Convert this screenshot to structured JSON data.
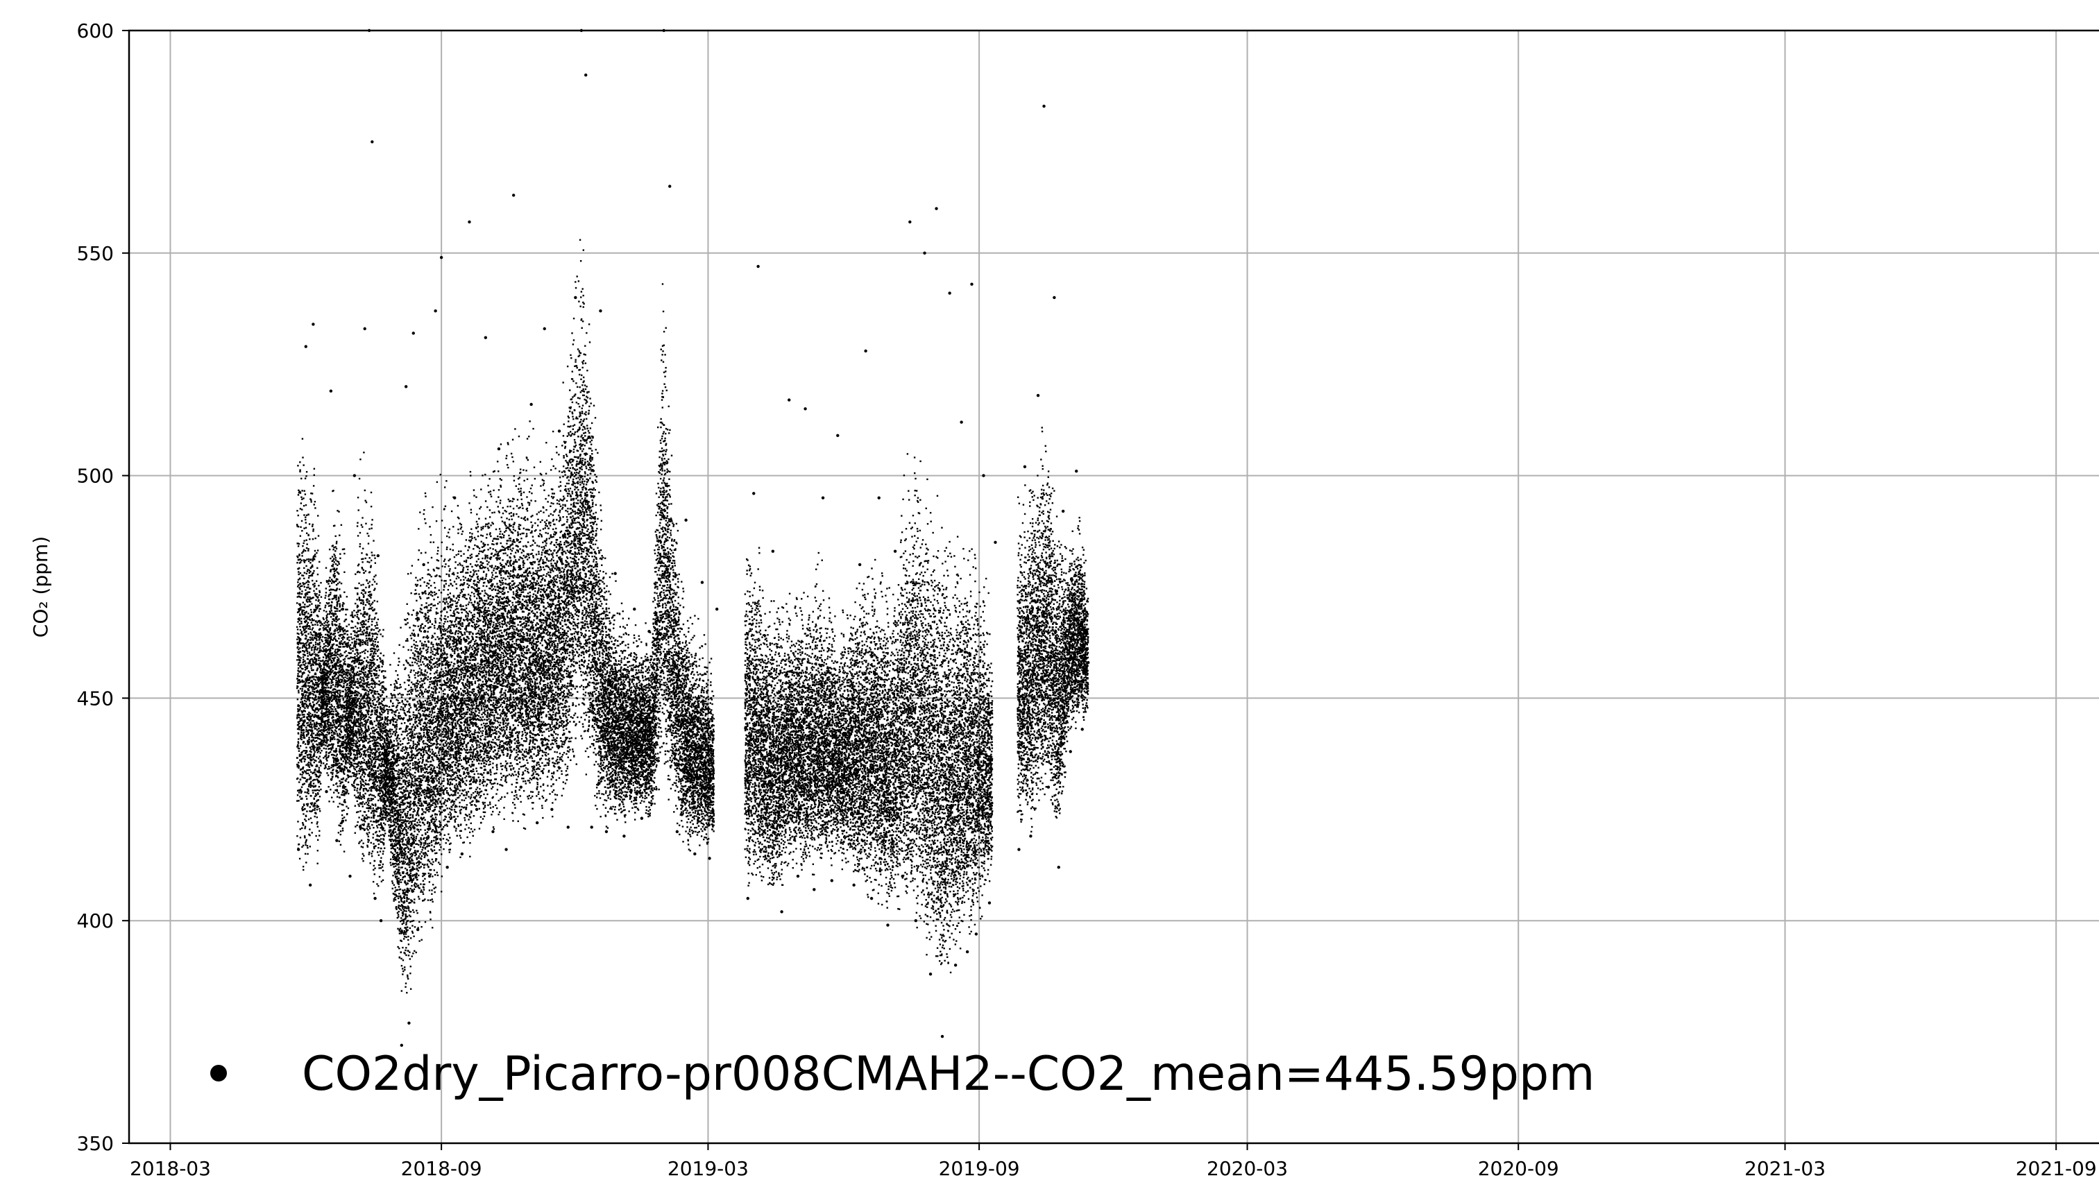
{
  "chart_data": {
    "type": "scatter",
    "title": "",
    "xlabel": "",
    "ylabel": "CO₂ (ppm)",
    "xlim": [
      "2018-02-01",
      "2021-10-10"
    ],
    "ylim": [
      350,
      600
    ],
    "xticks": [
      "2018-03",
      "2018-09",
      "2019-03",
      "2019-09",
      "2020-03",
      "2020-09",
      "2021-03",
      "2021-09"
    ],
    "yticks": [
      350,
      400,
      450,
      500,
      550,
      600
    ],
    "grid": true,
    "legend_position": "lower-left",
    "marker_color": "#000000",
    "series": [
      {
        "name": "CO2dry_Picarro-pr008CMAH2--CO2_mean=445.59ppm",
        "marker": "point",
        "x_range": [
          "2018-05-25",
          "2019-11-15"
        ],
        "mean": 445.59,
        "points": [
          [
            "2018-05-27",
            416
          ],
          [
            "2018-05-28",
            470
          ],
          [
            "2018-06-01",
            529
          ],
          [
            "2018-06-04",
            408
          ],
          [
            "2018-06-06",
            534
          ],
          [
            "2018-06-10",
            450
          ],
          [
            "2018-06-15",
            429
          ],
          [
            "2018-06-18",
            519
          ],
          [
            "2018-06-22",
            418
          ],
          [
            "2018-06-26",
            470
          ],
          [
            "2018-07-01",
            410
          ],
          [
            "2018-07-04",
            500
          ],
          [
            "2018-07-08",
            421
          ],
          [
            "2018-07-11",
            533
          ],
          [
            "2018-07-14",
            600
          ],
          [
            "2018-07-16",
            575
          ],
          [
            "2018-07-18",
            405
          ],
          [
            "2018-07-20",
            482
          ],
          [
            "2018-07-22",
            400
          ],
          [
            "2018-07-25",
            452
          ],
          [
            "2018-08-02",
            436
          ],
          [
            "2018-08-05",
            372
          ],
          [
            "2018-08-08",
            520
          ],
          [
            "2018-08-10",
            377
          ],
          [
            "2018-08-13",
            532
          ],
          [
            "2018-08-16",
            398
          ],
          [
            "2018-08-20",
            480
          ],
          [
            "2018-08-24",
            410
          ],
          [
            "2018-08-28",
            537
          ],
          [
            "2018-09-01",
            549
          ],
          [
            "2018-09-05",
            412
          ],
          [
            "2018-09-10",
            495
          ],
          [
            "2018-09-15",
            415
          ],
          [
            "2018-09-20",
            557
          ],
          [
            "2018-09-25",
            425
          ],
          [
            "2018-10-01",
            531
          ],
          [
            "2018-10-06",
            420
          ],
          [
            "2018-10-10",
            506
          ],
          [
            "2018-10-15",
            416
          ],
          [
            "2018-10-20",
            563
          ],
          [
            "2018-10-25",
            430
          ],
          [
            "2018-11-01",
            516
          ],
          [
            "2018-11-05",
            422
          ],
          [
            "2018-11-10",
            533
          ],
          [
            "2018-11-15",
            425
          ],
          [
            "2018-11-20",
            510
          ],
          [
            "2018-11-26",
            421
          ],
          [
            "2018-12-01",
            540
          ],
          [
            "2018-12-05",
            600
          ],
          [
            "2018-12-08",
            590
          ],
          [
            "2018-12-12",
            421
          ],
          [
            "2018-12-18",
            537
          ],
          [
            "2018-12-22",
            420
          ],
          [
            "2018-12-28",
            478
          ],
          [
            "2019-01-03",
            419
          ],
          [
            "2019-01-10",
            470
          ],
          [
            "2019-01-15",
            423
          ],
          [
            "2019-01-20",
            465
          ],
          [
            "2019-01-25",
            440
          ],
          [
            "2019-01-30",
            600
          ],
          [
            "2019-02-03",
            565
          ],
          [
            "2019-02-08",
            420
          ],
          [
            "2019-02-14",
            490
          ],
          [
            "2019-02-20",
            415
          ],
          [
            "2019-02-25",
            476
          ],
          [
            "2019-03-02",
            414
          ],
          [
            "2019-03-07",
            470
          ],
          [
            "2019-03-28",
            405
          ],
          [
            "2019-04-01",
            496
          ],
          [
            "2019-04-04",
            547
          ],
          [
            "2019-04-08",
            420
          ],
          [
            "2019-04-14",
            483
          ],
          [
            "2019-04-20",
            402
          ],
          [
            "2019-04-25",
            517
          ],
          [
            "2019-05-01",
            410
          ],
          [
            "2019-05-06",
            515
          ],
          [
            "2019-05-12",
            407
          ],
          [
            "2019-05-18",
            495
          ],
          [
            "2019-05-24",
            409
          ],
          [
            "2019-05-28",
            509
          ],
          [
            "2019-06-08",
            408
          ],
          [
            "2019-06-12",
            480
          ],
          [
            "2019-06-16",
            528
          ],
          [
            "2019-06-20",
            405
          ],
          [
            "2019-06-25",
            495
          ],
          [
            "2019-07-01",
            399
          ],
          [
            "2019-07-06",
            483
          ],
          [
            "2019-07-11",
            410
          ],
          [
            "2019-07-16",
            557
          ],
          [
            "2019-07-20",
            400
          ],
          [
            "2019-07-26",
            550
          ],
          [
            "2019-07-30",
            388
          ],
          [
            "2019-08-03",
            560
          ],
          [
            "2019-08-07",
            374
          ],
          [
            "2019-08-12",
            541
          ],
          [
            "2019-08-16",
            390
          ],
          [
            "2019-08-20",
            512
          ],
          [
            "2019-08-24",
            393
          ],
          [
            "2019-08-27",
            543
          ],
          [
            "2019-08-30",
            397
          ],
          [
            "2019-09-04",
            500
          ],
          [
            "2019-09-08",
            404
          ],
          [
            "2019-09-12",
            485
          ],
          [
            "2019-09-28",
            416
          ],
          [
            "2019-10-02",
            502
          ],
          [
            "2019-10-06",
            419
          ],
          [
            "2019-10-11",
            518
          ],
          [
            "2019-10-15",
            583
          ],
          [
            "2019-10-18",
            430
          ],
          [
            "2019-10-22",
            540
          ],
          [
            "2019-10-25",
            412
          ],
          [
            "2019-10-28",
            492
          ],
          [
            "2019-11-02",
            438
          ],
          [
            "2019-11-06",
            501
          ],
          [
            "2019-11-10",
            443
          ],
          [
            "2019-11-14",
            458
          ]
        ]
      }
    ],
    "density_profile": [
      [
        "2018-05-26",
        408,
        520
      ],
      [
        "2018-06-03",
        407,
        515
      ],
      [
        "2018-06-10",
        410,
        505
      ],
      [
        "2018-06-12",
        435,
        470
      ],
      [
        "2018-06-20",
        418,
        510
      ],
      [
        "2018-06-27",
        412,
        490
      ],
      [
        "2018-07-01",
        430,
        470
      ],
      [
        "2018-07-07",
        410,
        505
      ],
      [
        "2018-07-14",
        405,
        510
      ],
      [
        "2018-07-22",
        402,
        480
      ],
      [
        "2018-07-26",
        420,
        455
      ],
      [
        "2018-08-01",
        395,
        470
      ],
      [
        "2018-08-07",
        375,
        480
      ],
      [
        "2018-08-14",
        385,
        500
      ],
      [
        "2018-08-21",
        395,
        505
      ],
      [
        "2018-08-28",
        398,
        500
      ],
      [
        "2018-09-04",
        410,
        505
      ],
      [
        "2018-09-11",
        412,
        500
      ],
      [
        "2018-09-18",
        412,
        505
      ],
      [
        "2018-09-25",
        415,
        510
      ],
      [
        "2018-10-02",
        418,
        510
      ],
      [
        "2018-10-09",
        418,
        515
      ],
      [
        "2018-10-16",
        420,
        515
      ],
      [
        "2018-10-23",
        418,
        520
      ],
      [
        "2018-10-30",
        420,
        515
      ],
      [
        "2018-11-06",
        420,
        510
      ],
      [
        "2018-11-13",
        422,
        515
      ],
      [
        "2018-11-20",
        422,
        520
      ],
      [
        "2018-11-27",
        425,
        540
      ],
      [
        "2018-12-04",
        435,
        570
      ],
      [
        "2018-12-11",
        425,
        545
      ],
      [
        "2018-12-18",
        420,
        500
      ],
      [
        "2018-12-25",
        420,
        480
      ],
      [
        "2019-01-01",
        420,
        475
      ],
      [
        "2019-01-08",
        422,
        470
      ],
      [
        "2019-01-15",
        422,
        470
      ],
      [
        "2019-01-22",
        420,
        470
      ],
      [
        "2019-01-29",
        430,
        560
      ],
      [
        "2019-02-05",
        420,
        510
      ],
      [
        "2019-02-12",
        415,
        480
      ],
      [
        "2019-02-19",
        415,
        470
      ],
      [
        "2019-02-26",
        414,
        468
      ],
      [
        "2019-03-05",
        416,
        460
      ],
      [
        "2019-03-26",
        408,
        490
      ],
      [
        "2019-04-02",
        404,
        495
      ],
      [
        "2019-04-09",
        405,
        480
      ],
      [
        "2019-04-16",
        402,
        480
      ],
      [
        "2019-04-23",
        408,
        480
      ],
      [
        "2019-04-30",
        410,
        478
      ],
      [
        "2019-05-07",
        408,
        480
      ],
      [
        "2019-05-14",
        410,
        485
      ],
      [
        "2019-05-21",
        410,
        480
      ],
      [
        "2019-05-28",
        412,
        470
      ],
      [
        "2019-06-06",
        408,
        480
      ],
      [
        "2019-06-13",
        405,
        485
      ],
      [
        "2019-06-20",
        402,
        490
      ],
      [
        "2019-06-27",
        400,
        485
      ],
      [
        "2019-07-04",
        400,
        480
      ],
      [
        "2019-07-11",
        402,
        500
      ],
      [
        "2019-07-18",
        398,
        515
      ],
      [
        "2019-07-25",
        392,
        510
      ],
      [
        "2019-08-01",
        388,
        505
      ],
      [
        "2019-08-08",
        380,
        500
      ],
      [
        "2019-08-15",
        388,
        495
      ],
      [
        "2019-08-22",
        392,
        495
      ],
      [
        "2019-08-29",
        395,
        490
      ],
      [
        "2019-09-05",
        402,
        480
      ],
      [
        "2019-09-10",
        408,
        470
      ],
      [
        "2019-09-27",
        418,
        500
      ],
      [
        "2019-10-04",
        418,
        505
      ],
      [
        "2019-10-11",
        420,
        515
      ],
      [
        "2019-10-18",
        425,
        520
      ],
      [
        "2019-10-25",
        415,
        495
      ],
      [
        "2019-11-01",
        440,
        490
      ],
      [
        "2019-11-08",
        442,
        495
      ],
      [
        "2019-11-14",
        445,
        480
      ]
    ]
  }
}
